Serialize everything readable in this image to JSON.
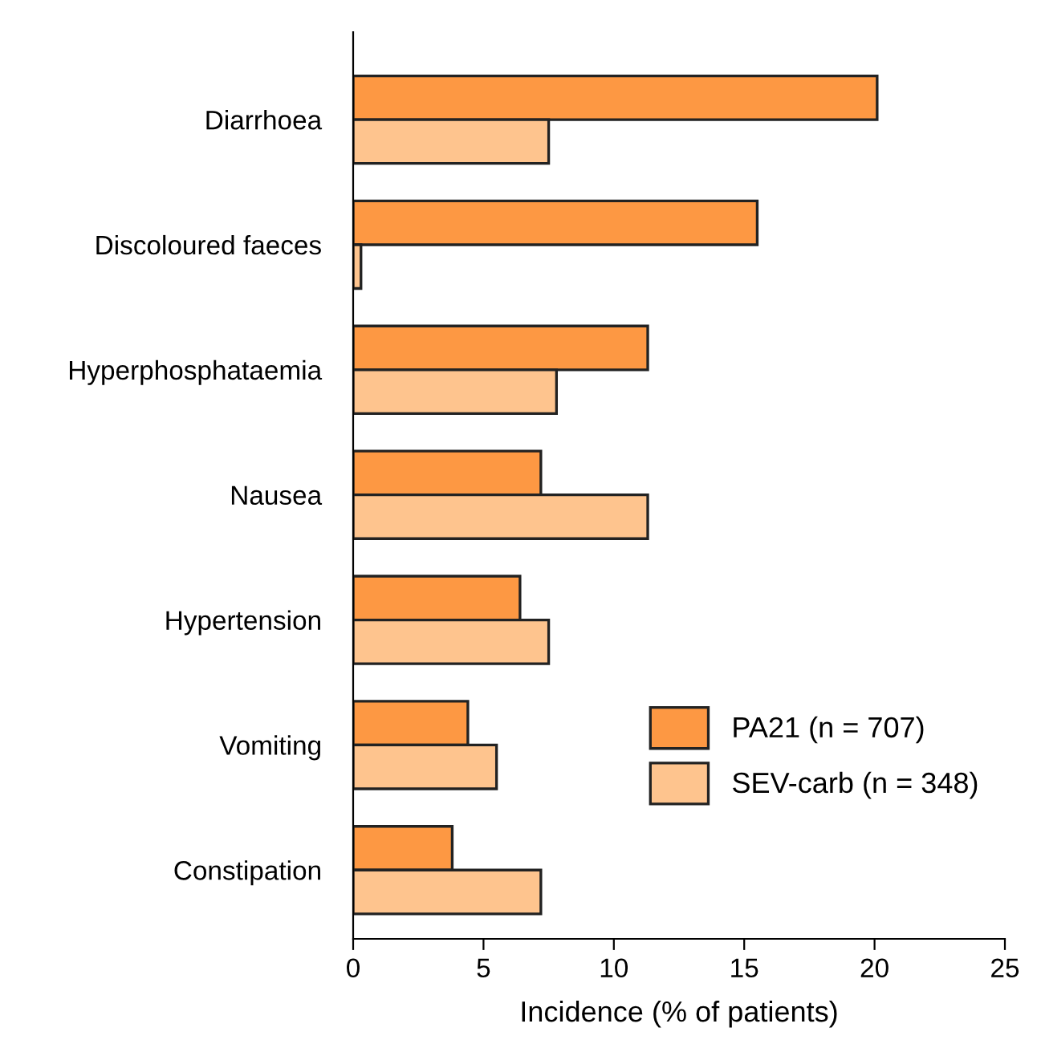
{
  "chart_data": {
    "type": "bar",
    "orientation": "horizontal",
    "xlabel": "Incidence (% of patients)",
    "categories": [
      "Diarrhoea",
      "Discoloured faeces",
      "Hyperphosphataemia",
      "Nausea",
      "Hypertension",
      "Vomiting",
      "Constipation"
    ],
    "series": [
      {
        "name": "PA21 (n = 707)",
        "color": "#fd9843",
        "values": [
          20.1,
          15.5,
          11.3,
          7.2,
          6.4,
          4.4,
          3.8
        ]
      },
      {
        "name": "SEV-carb (n = 348)",
        "color": "#fec48e",
        "values": [
          7.5,
          0.3,
          7.8,
          11.3,
          7.5,
          5.5,
          7.2
        ]
      }
    ],
    "xlim": [
      0,
      25
    ],
    "xticks": [
      0,
      5,
      10,
      15,
      20,
      25
    ],
    "grid": false,
    "legend": "bottom right"
  }
}
